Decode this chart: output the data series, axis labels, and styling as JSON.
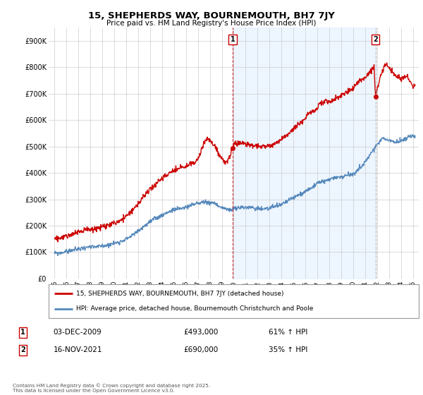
{
  "title": "15, SHEPHERDS WAY, BOURNEMOUTH, BH7 7JY",
  "subtitle": "Price paid vs. HM Land Registry's House Price Index (HPI)",
  "ylabel_ticks": [
    "£0",
    "£100K",
    "£200K",
    "£300K",
    "£400K",
    "£500K",
    "£600K",
    "£700K",
    "£800K",
    "£900K"
  ],
  "ytick_values": [
    0,
    100000,
    200000,
    300000,
    400000,
    500000,
    600000,
    700000,
    800000,
    900000
  ],
  "ylim": [
    0,
    950000
  ],
  "sale1": {
    "date_num": 2009.92,
    "price": 493000,
    "label": "1",
    "date_str": "03-DEC-2009",
    "pct": "61% ↑ HPI"
  },
  "sale2": {
    "date_num": 2021.88,
    "price": 690000,
    "label": "2",
    "date_str": "16-NOV-2021",
    "pct": "35% ↑ HPI"
  },
  "legend1": "15, SHEPHERDS WAY, BOURNEMOUTH, BH7 7JY (detached house)",
  "legend2": "HPI: Average price, detached house, Bournemouth Christchurch and Poole",
  "footnote": "Contains HM Land Registry data © Crown copyright and database right 2025.\nThis data is licensed under the Open Government Licence v3.0.",
  "red_color": "#cc0000",
  "blue_color": "#5588bb",
  "blue_fill": "#ddeeff",
  "grid_color": "#cccccc",
  "bg_color": "#ffffff",
  "hpi_years": [
    1995,
    1995.5,
    1996,
    1996.5,
    1997,
    1997.5,
    1998,
    1998.5,
    1999,
    1999.5,
    2000,
    2000.5,
    2001,
    2001.5,
    2002,
    2002.5,
    2003,
    2003.5,
    2004,
    2004.5,
    2005,
    2005.5,
    2006,
    2006.5,
    2007,
    2007.5,
    2008,
    2008.5,
    2009,
    2009.5,
    2010,
    2010.5,
    2011,
    2011.5,
    2012,
    2012.5,
    2013,
    2013.5,
    2014,
    2014.5,
    2015,
    2015.5,
    2016,
    2016.5,
    2017,
    2017.5,
    2018,
    2018.5,
    2019,
    2019.5,
    2020,
    2020.5,
    2021,
    2021.5,
    2022,
    2022.5,
    2023,
    2023.5,
    2024,
    2024.5,
    2025
  ],
  "hpi_vals": [
    95000,
    97000,
    102000,
    107000,
    112000,
    117000,
    118000,
    120000,
    123000,
    128000,
    133000,
    140000,
    150000,
    163000,
    180000,
    198000,
    215000,
    228000,
    240000,
    252000,
    260000,
    265000,
    270000,
    278000,
    285000,
    290000,
    288000,
    282000,
    268000,
    260000,
    263000,
    268000,
    270000,
    268000,
    265000,
    264000,
    267000,
    272000,
    280000,
    293000,
    305000,
    318000,
    330000,
    345000,
    358000,
    368000,
    375000,
    380000,
    385000,
    390000,
    395000,
    415000,
    440000,
    475000,
    510000,
    530000,
    525000,
    515000,
    520000,
    530000,
    540000
  ],
  "red_years": [
    1995,
    1995.5,
    1996,
    1996.5,
    1997,
    1997.5,
    1998,
    1998.5,
    1999,
    1999.5,
    2000,
    2000.5,
    2001,
    2001.5,
    2002,
    2002.5,
    2003,
    2003.5,
    2004,
    2004.5,
    2005,
    2005.5,
    2006,
    2006.5,
    2007,
    2007.25,
    2007.5,
    2007.75,
    2008,
    2008.25,
    2008.5,
    2008.75,
    2009,
    2009.25,
    2009.5,
    2009.75,
    2009.92,
    2010,
    2010.5,
    2011,
    2011.5,
    2012,
    2012.5,
    2013,
    2013.5,
    2014,
    2014.5,
    2015,
    2015.5,
    2016,
    2016.25,
    2016.5,
    2016.75,
    2017,
    2017.25,
    2017.5,
    2017.75,
    2018,
    2018.5,
    2019,
    2019.5,
    2020,
    2020.5,
    2021,
    2021.5,
    2021.75,
    2021.88,
    2022,
    2022.25,
    2022.5,
    2022.75,
    2023,
    2023.5,
    2024,
    2024.5,
    2025
  ],
  "red_vals": [
    150000,
    153000,
    161000,
    168000,
    176000,
    184000,
    186000,
    189000,
    194000,
    202000,
    209000,
    220000,
    236000,
    257000,
    283000,
    312000,
    338000,
    359000,
    378000,
    397000,
    409000,
    417000,
    425000,
    437000,
    449000,
    480000,
    510000,
    530000,
    527000,
    510000,
    493000,
    470000,
    453000,
    442000,
    445000,
    470000,
    493000,
    510000,
    515000,
    510000,
    505000,
    500000,
    499000,
    502000,
    510000,
    525000,
    545000,
    568000,
    587000,
    608000,
    625000,
    632000,
    630000,
    650000,
    665000,
    670000,
    672000,
    670000,
    680000,
    695000,
    710000,
    720000,
    750000,
    760000,
    790000,
    800000,
    690000,
    710000,
    760000,
    790000,
    810000,
    800000,
    770000,
    755000,
    765000,
    730000
  ]
}
